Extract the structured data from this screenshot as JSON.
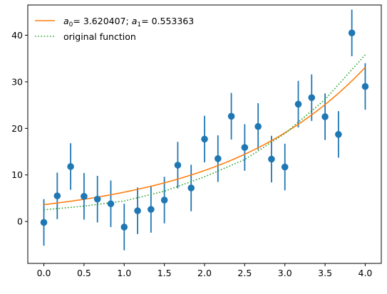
{
  "chart_data": {
    "type": "scatter",
    "title": "",
    "xlabel": "",
    "ylabel": "",
    "xlim": [
      -0.2,
      4.2
    ],
    "ylim": [
      -9,
      46.5
    ],
    "grid": false,
    "legend_position": "top-left",
    "x_ticks": [
      "0.0",
      "0.5",
      "1.0",
      "1.5",
      "2.0",
      "2.5",
      "3.0",
      "3.5",
      "4.0"
    ],
    "y_ticks": [
      "0",
      "10",
      "20",
      "30",
      "40"
    ],
    "series": [
      {
        "kind": "errorbar",
        "color": "#1f77b4",
        "x": [
          0.0,
          0.1667,
          0.3333,
          0.5,
          0.6667,
          0.8333,
          1.0,
          1.1667,
          1.3333,
          1.5,
          1.6667,
          1.8333,
          2.0,
          2.1667,
          2.3333,
          2.5,
          2.6667,
          2.8333,
          3.0,
          3.1667,
          3.3333,
          3.5,
          3.6667,
          3.8333,
          4.0
        ],
        "y": [
          -0.2,
          5.5,
          11.8,
          5.4,
          4.8,
          3.8,
          -1.2,
          2.3,
          2.6,
          4.6,
          12.1,
          7.2,
          17.7,
          13.5,
          22.6,
          15.9,
          20.4,
          13.4,
          11.7,
          25.2,
          26.6,
          22.5,
          18.7,
          40.5,
          29.0
        ],
        "yerr": 5.0
      },
      {
        "name": "$a_0 = $ 3.620407; $a_1 = $ 0.553363",
        "kind": "line",
        "color": "#ff7f0e",
        "style": "solid",
        "equation": "y = a0 * exp(a1 * x)",
        "a0": 3.620407,
        "a1": 0.553363
      },
      {
        "name": "original function",
        "kind": "line",
        "color": "#2ca02c",
        "style": "dotted",
        "x": [
          0.0,
          0.5,
          1.0,
          1.5,
          2.0,
          2.5,
          3.0,
          3.5,
          4.0
        ],
        "y": [
          2.5,
          3.3,
          4.4,
          6.5,
          9.6,
          13.3,
          18.9,
          26.2,
          35.8
        ]
      }
    ],
    "legend": {
      "fit": {
        "a0_label": "a",
        "a0_sub": "0",
        "a0_value": " 3.620407",
        "a1_label": "a",
        "a1_sub": "1",
        "a1_value": " 0.553363"
      },
      "original": "original function"
    }
  }
}
